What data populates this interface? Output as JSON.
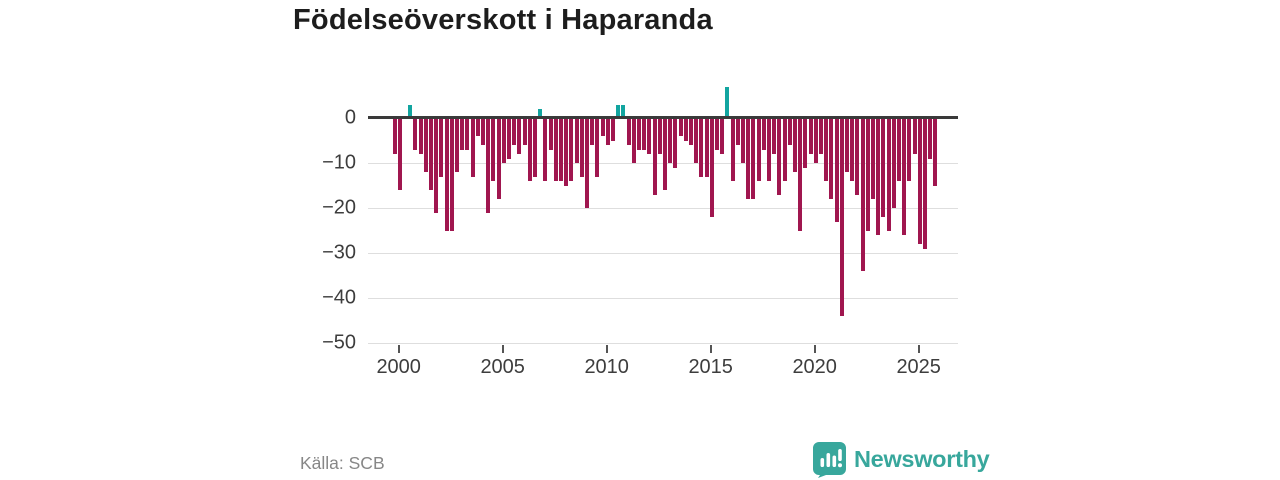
{
  "title": "Födelseöverskott i Haparanda",
  "footer": {
    "source": "Källa: SCB",
    "brand": "Newsworthy"
  },
  "colors": {
    "negative": "#a0164f",
    "positive": "#12a5a0",
    "axis": "#3a3a3a",
    "grid": "#dedede",
    "tick_label": "#3d3d3d",
    "source_text": "#878787",
    "brand_teal": "#38a79c"
  },
  "chart_data": {
    "type": "bar",
    "title": "Födelseöverskott i Haparanda",
    "xlabel": "",
    "ylabel": "",
    "ylim": [
      -50,
      8
    ],
    "grid": "horizontal",
    "y_tick_values": [
      0,
      -10,
      -20,
      -30,
      -40,
      -50
    ],
    "y_tick_labels": [
      "0",
      "−10",
      "−20",
      "−30",
      "−40",
      "−50"
    ],
    "x_tick_labels": [
      "2000",
      "2005",
      "2010",
      "2015",
      "2020",
      "2025"
    ],
    "x_tick_years": [
      2000,
      2005,
      2010,
      2015,
      2020,
      2025
    ],
    "quarters": [
      "1999K4",
      "2000K1",
      "2000K2",
      "2000K3",
      "2000K4",
      "2001K1",
      "2001K2",
      "2001K3",
      "2001K4",
      "2002K1",
      "2002K2",
      "2002K3",
      "2002K4",
      "2003K1",
      "2003K2",
      "2003K3",
      "2003K4",
      "2004K1",
      "2004K2",
      "2004K3",
      "2004K4",
      "2005K1",
      "2005K2",
      "2005K3",
      "2005K4",
      "2006K1",
      "2006K2",
      "2006K3",
      "2006K4",
      "2007K1",
      "2007K2",
      "2007K3",
      "2007K4",
      "2008K1",
      "2008K2",
      "2008K3",
      "2008K4",
      "2009K1",
      "2009K2",
      "2009K3",
      "2009K4",
      "2010K1",
      "2010K2",
      "2010K3",
      "2010K4",
      "2011K1",
      "2011K2",
      "2011K3",
      "2011K4",
      "2012K1",
      "2012K2",
      "2012K3",
      "2012K4",
      "2013K1",
      "2013K2",
      "2013K3",
      "2013K4",
      "2014K1",
      "2014K2",
      "2014K3",
      "2014K4",
      "2015K1",
      "2015K2",
      "2015K3",
      "2015K4",
      "2016K1",
      "2016K2",
      "2016K3",
      "2016K4",
      "2017K1",
      "2017K2",
      "2017K3",
      "2017K4",
      "2018K1",
      "2018K2",
      "2018K3",
      "2018K4",
      "2019K1",
      "2019K2",
      "2019K3",
      "2019K4",
      "2020K1",
      "2020K2",
      "2020K3",
      "2020K4",
      "2021K1",
      "2021K2",
      "2021K3",
      "2021K4",
      "2022K1",
      "2022K2",
      "2022K3",
      "2022K4",
      "2023K1",
      "2023K2",
      "2023K3",
      "2023K4",
      "2024K1",
      "2024K2",
      "2024K3",
      "2024K4",
      "2025K1",
      "2025K2",
      "2025K3",
      "2025K4"
    ],
    "values": [
      -8,
      -16,
      0,
      3,
      -7,
      -8,
      -12,
      -16,
      -21,
      -13,
      -25,
      -25,
      -12,
      -7,
      -7,
      -13,
      -4,
      -6,
      -21,
      -14,
      -18,
      -10,
      -9,
      -6,
      -8,
      -6,
      -14,
      -13,
      2,
      -14,
      -7,
      -14,
      -14,
      -15,
      -14,
      -10,
      -13,
      -20,
      -6,
      -13,
      -4,
      -6,
      -5,
      3,
      3,
      -6,
      -10,
      -7,
      -7,
      -8,
      -17,
      -8,
      -16,
      -10,
      -11,
      -4,
      -5,
      -6,
      -10,
      -13,
      -13,
      -22,
      -7,
      -8,
      7,
      -14,
      -6,
      -10,
      -18,
      -18,
      -14,
      -7,
      -14,
      -8,
      -17,
      -14,
      -6,
      -12,
      -25,
      -11,
      -8,
      -10,
      -8,
      -14,
      -18,
      -23,
      -44,
      -12,
      -14,
      -17,
      -34,
      -25,
      -18,
      -26,
      -22,
      -25,
      -20,
      -14,
      -26,
      -14,
      -8,
      -28,
      -29,
      -9,
      -15
    ]
  }
}
